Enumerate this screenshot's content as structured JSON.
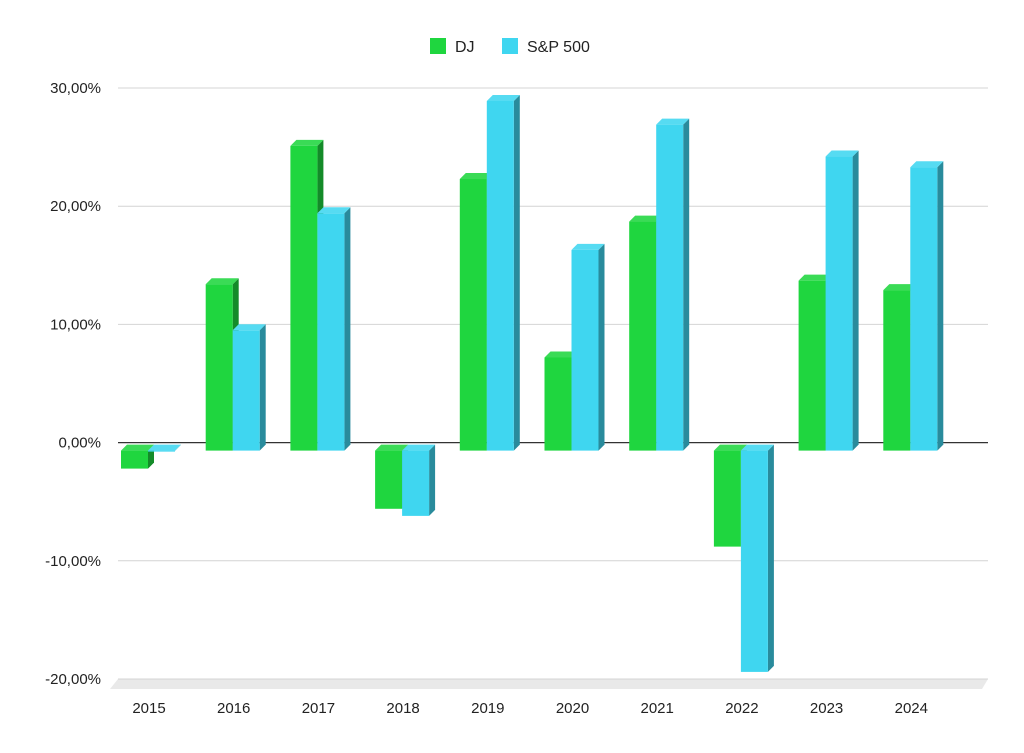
{
  "chart_data": {
    "type": "bar",
    "style": "3d-clustered-column",
    "categories": [
      "2015",
      "2016",
      "2017",
      "2018",
      "2019",
      "2020",
      "2021",
      "2022",
      "2023",
      "2024"
    ],
    "series": [
      {
        "name": "DJ",
        "color": "#1fd63f",
        "values": [
          -2.2,
          13.4,
          25.1,
          -5.6,
          22.3,
          7.2,
          18.7,
          -8.8,
          13.7,
          12.9
        ]
      },
      {
        "name": "S&P 500",
        "color": "#3fd6f0",
        "values": [
          -0.7,
          9.5,
          19.4,
          -6.2,
          28.9,
          16.3,
          26.9,
          -19.4,
          24.2,
          23.3
        ]
      }
    ],
    "ylim": [
      -20,
      30
    ],
    "yticks": [
      {
        "value": 30,
        "label": "30,00%"
      },
      {
        "value": 20,
        "label": "20,00%"
      },
      {
        "value": 10,
        "label": "10,00%"
      },
      {
        "value": 0,
        "label": "0,00%"
      },
      {
        "value": -10,
        "label": "-10,00%"
      },
      {
        "value": -20,
        "label": "-20,00%"
      }
    ],
    "grid": true,
    "legend_position": "top-center"
  }
}
